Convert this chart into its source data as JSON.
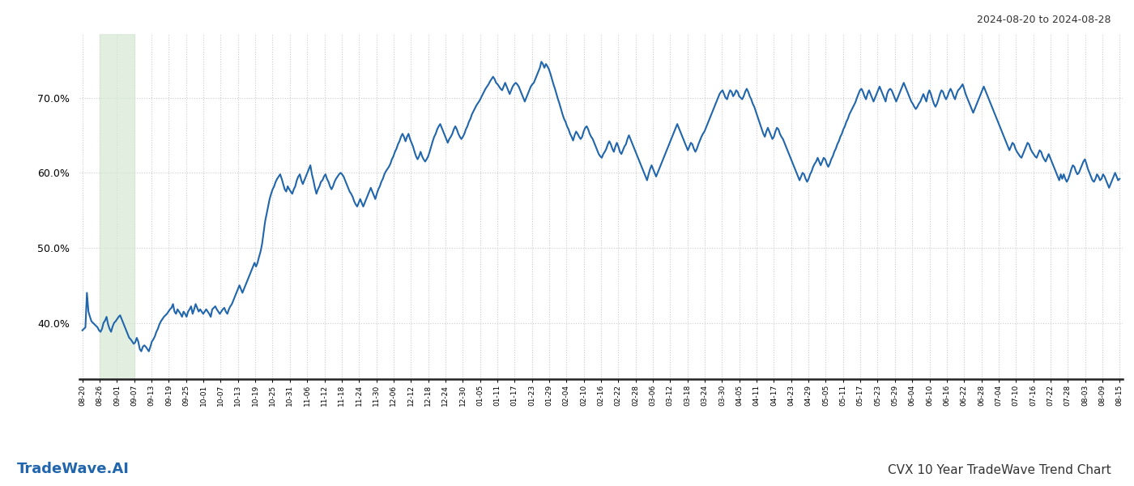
{
  "title_top_right": "2024-08-20 to 2024-08-28",
  "title_bottom_right": "CVX 10 Year TradeWave Trend Chart",
  "title_bottom_left": "TradeWave.AI",
  "line_color": "#2166ac",
  "line_width": 1.5,
  "shaded_region_color": "#d5e8d4",
  "shaded_region_alpha": 0.7,
  "background_color": "#ffffff",
  "grid_color": "#cccccc",
  "y_ticks": [
    0.4,
    0.5,
    0.6,
    0.7
  ],
  "ylim": [
    0.325,
    0.785
  ],
  "x_tick_labels": [
    "08-20",
    "08-26",
    "09-01",
    "09-07",
    "09-13",
    "09-19",
    "09-25",
    "10-01",
    "10-07",
    "10-13",
    "10-19",
    "10-25",
    "10-31",
    "11-06",
    "11-12",
    "11-18",
    "11-24",
    "11-30",
    "12-06",
    "12-12",
    "12-18",
    "12-24",
    "12-30",
    "01-05",
    "01-11",
    "01-17",
    "01-23",
    "01-29",
    "02-04",
    "02-10",
    "02-16",
    "02-22",
    "02-28",
    "03-06",
    "03-12",
    "03-18",
    "03-24",
    "03-30",
    "04-05",
    "04-11",
    "04-17",
    "04-23",
    "04-29",
    "05-05",
    "05-11",
    "05-17",
    "05-23",
    "05-29",
    "06-04",
    "06-10",
    "06-16",
    "06-22",
    "06-28",
    "07-04",
    "07-10",
    "07-16",
    "07-22",
    "07-28",
    "08-03",
    "08-09",
    "08-15"
  ],
  "shaded_x_start_label": "08-26",
  "shaded_x_end_label": "09-07",
  "values": [
    0.39,
    0.392,
    0.394,
    0.44,
    0.415,
    0.408,
    0.402,
    0.4,
    0.398,
    0.396,
    0.394,
    0.39,
    0.388,
    0.392,
    0.4,
    0.403,
    0.408,
    0.398,
    0.392,
    0.388,
    0.395,
    0.4,
    0.402,
    0.405,
    0.408,
    0.41,
    0.405,
    0.4,
    0.395,
    0.39,
    0.385,
    0.38,
    0.378,
    0.375,
    0.372,
    0.374,
    0.38,
    0.375,
    0.365,
    0.362,
    0.368,
    0.37,
    0.368,
    0.365,
    0.362,
    0.368,
    0.375,
    0.378,
    0.382,
    0.388,
    0.392,
    0.398,
    0.402,
    0.405,
    0.408,
    0.41,
    0.412,
    0.415,
    0.418,
    0.42,
    0.425,
    0.415,
    0.412,
    0.418,
    0.415,
    0.412,
    0.408,
    0.415,
    0.412,
    0.408,
    0.415,
    0.418,
    0.422,
    0.412,
    0.418,
    0.425,
    0.42,
    0.415,
    0.418,
    0.415,
    0.412,
    0.415,
    0.418,
    0.415,
    0.412,
    0.408,
    0.418,
    0.42,
    0.422,
    0.418,
    0.415,
    0.412,
    0.415,
    0.418,
    0.42,
    0.415,
    0.412,
    0.418,
    0.422,
    0.425,
    0.43,
    0.435,
    0.44,
    0.445,
    0.45,
    0.445,
    0.44,
    0.445,
    0.45,
    0.455,
    0.46,
    0.465,
    0.47,
    0.475,
    0.48,
    0.475,
    0.48,
    0.488,
    0.495,
    0.505,
    0.52,
    0.535,
    0.545,
    0.555,
    0.565,
    0.572,
    0.578,
    0.582,
    0.588,
    0.592,
    0.595,
    0.598,
    0.592,
    0.585,
    0.578,
    0.575,
    0.582,
    0.578,
    0.575,
    0.572,
    0.578,
    0.582,
    0.59,
    0.595,
    0.598,
    0.59,
    0.585,
    0.59,
    0.595,
    0.6,
    0.605,
    0.61,
    0.598,
    0.59,
    0.58,
    0.572,
    0.578,
    0.582,
    0.588,
    0.59,
    0.595,
    0.598,
    0.592,
    0.588,
    0.582,
    0.578,
    0.582,
    0.588,
    0.592,
    0.595,
    0.598,
    0.6,
    0.598,
    0.595,
    0.59,
    0.585,
    0.58,
    0.575,
    0.572,
    0.568,
    0.562,
    0.558,
    0.555,
    0.56,
    0.565,
    0.56,
    0.555,
    0.56,
    0.565,
    0.57,
    0.575,
    0.58,
    0.575,
    0.57,
    0.565,
    0.572,
    0.578,
    0.582,
    0.588,
    0.592,
    0.598,
    0.602,
    0.605,
    0.608,
    0.612,
    0.618,
    0.622,
    0.628,
    0.632,
    0.638,
    0.642,
    0.648,
    0.652,
    0.648,
    0.642,
    0.648,
    0.652,
    0.645,
    0.64,
    0.635,
    0.628,
    0.622,
    0.618,
    0.622,
    0.628,
    0.622,
    0.618,
    0.615,
    0.618,
    0.622,
    0.628,
    0.635,
    0.642,
    0.648,
    0.652,
    0.658,
    0.662,
    0.665,
    0.66,
    0.655,
    0.65,
    0.645,
    0.64,
    0.645,
    0.648,
    0.652,
    0.658,
    0.662,
    0.658,
    0.652,
    0.648,
    0.645,
    0.648,
    0.652,
    0.658,
    0.662,
    0.668,
    0.672,
    0.678,
    0.682,
    0.686,
    0.69,
    0.693,
    0.696,
    0.7,
    0.704,
    0.708,
    0.712,
    0.715,
    0.718,
    0.722,
    0.725,
    0.728,
    0.725,
    0.72,
    0.718,
    0.715,
    0.712,
    0.71,
    0.715,
    0.72,
    0.715,
    0.71,
    0.705,
    0.71,
    0.715,
    0.718,
    0.72,
    0.718,
    0.715,
    0.71,
    0.705,
    0.7,
    0.695,
    0.7,
    0.705,
    0.71,
    0.715,
    0.718,
    0.72,
    0.725,
    0.73,
    0.735,
    0.74,
    0.748,
    0.745,
    0.74,
    0.745,
    0.742,
    0.738,
    0.732,
    0.725,
    0.718,
    0.712,
    0.705,
    0.698,
    0.692,
    0.685,
    0.678,
    0.672,
    0.668,
    0.662,
    0.658,
    0.652,
    0.648,
    0.643,
    0.65,
    0.655,
    0.652,
    0.648,
    0.645,
    0.648,
    0.655,
    0.66,
    0.662,
    0.658,
    0.652,
    0.648,
    0.645,
    0.64,
    0.635,
    0.63,
    0.625,
    0.622,
    0.62,
    0.625,
    0.628,
    0.632,
    0.638,
    0.642,
    0.638,
    0.632,
    0.628,
    0.635,
    0.64,
    0.635,
    0.628,
    0.625,
    0.63,
    0.635,
    0.638,
    0.645,
    0.65,
    0.645,
    0.64,
    0.635,
    0.63,
    0.625,
    0.62,
    0.615,
    0.61,
    0.605,
    0.6,
    0.595,
    0.59,
    0.598,
    0.605,
    0.61,
    0.605,
    0.6,
    0.595,
    0.6,
    0.605,
    0.61,
    0.615,
    0.62,
    0.625,
    0.63,
    0.635,
    0.64,
    0.645,
    0.65,
    0.655,
    0.66,
    0.665,
    0.66,
    0.655,
    0.65,
    0.645,
    0.64,
    0.635,
    0.63,
    0.635,
    0.64,
    0.638,
    0.632,
    0.628,
    0.632,
    0.638,
    0.643,
    0.648,
    0.652,
    0.655,
    0.66,
    0.665,
    0.67,
    0.675,
    0.68,
    0.685,
    0.69,
    0.695,
    0.7,
    0.705,
    0.708,
    0.71,
    0.705,
    0.7,
    0.698,
    0.705,
    0.71,
    0.708,
    0.702,
    0.705,
    0.71,
    0.708,
    0.702,
    0.7,
    0.698,
    0.702,
    0.708,
    0.712,
    0.708,
    0.702,
    0.698,
    0.692,
    0.688,
    0.682,
    0.676,
    0.67,
    0.664,
    0.658,
    0.652,
    0.648,
    0.655,
    0.66,
    0.655,
    0.65,
    0.645,
    0.648,
    0.655,
    0.66,
    0.658,
    0.652,
    0.648,
    0.645,
    0.64,
    0.635,
    0.63,
    0.625,
    0.62,
    0.615,
    0.61,
    0.605,
    0.6,
    0.595,
    0.59,
    0.595,
    0.6,
    0.598,
    0.592,
    0.588,
    0.592,
    0.598,
    0.602,
    0.608,
    0.612,
    0.615,
    0.62,
    0.615,
    0.61,
    0.615,
    0.62,
    0.618,
    0.612,
    0.608,
    0.612,
    0.618,
    0.622,
    0.628,
    0.632,
    0.638,
    0.642,
    0.648,
    0.652,
    0.658,
    0.662,
    0.668,
    0.672,
    0.678,
    0.682,
    0.686,
    0.69,
    0.694,
    0.7,
    0.705,
    0.71,
    0.712,
    0.708,
    0.702,
    0.698,
    0.705,
    0.71,
    0.705,
    0.7,
    0.695,
    0.7,
    0.705,
    0.71,
    0.715,
    0.71,
    0.705,
    0.7,
    0.695,
    0.705,
    0.71,
    0.712,
    0.71,
    0.705,
    0.7,
    0.695,
    0.7,
    0.705,
    0.71,
    0.715,
    0.72,
    0.715,
    0.71,
    0.705,
    0.7,
    0.695,
    0.692,
    0.688,
    0.685,
    0.688,
    0.692,
    0.695,
    0.7,
    0.705,
    0.7,
    0.695,
    0.705,
    0.71,
    0.705,
    0.698,
    0.692,
    0.688,
    0.692,
    0.698,
    0.705,
    0.71,
    0.708,
    0.702,
    0.698,
    0.702,
    0.708,
    0.712,
    0.708,
    0.702,
    0.698,
    0.705,
    0.71,
    0.712,
    0.715,
    0.718,
    0.712,
    0.705,
    0.7,
    0.695,
    0.69,
    0.685,
    0.68,
    0.685,
    0.69,
    0.695,
    0.7,
    0.705,
    0.71,
    0.715,
    0.71,
    0.705,
    0.7,
    0.695,
    0.69,
    0.685,
    0.68,
    0.675,
    0.67,
    0.665,
    0.66,
    0.655,
    0.65,
    0.645,
    0.64,
    0.635,
    0.63,
    0.635,
    0.64,
    0.638,
    0.632,
    0.628,
    0.625,
    0.622,
    0.62,
    0.625,
    0.63,
    0.635,
    0.64,
    0.638,
    0.632,
    0.628,
    0.625,
    0.622,
    0.62,
    0.625,
    0.63,
    0.628,
    0.622,
    0.618,
    0.615,
    0.62,
    0.625,
    0.62,
    0.615,
    0.61,
    0.605,
    0.6,
    0.595,
    0.59,
    0.598,
    0.592,
    0.598,
    0.592,
    0.588,
    0.592,
    0.598,
    0.605,
    0.61,
    0.608,
    0.602,
    0.598,
    0.6,
    0.605,
    0.61,
    0.615,
    0.618,
    0.612,
    0.605,
    0.6,
    0.595,
    0.59,
    0.588,
    0.592,
    0.598,
    0.595,
    0.59,
    0.592,
    0.598,
    0.595,
    0.59,
    0.585,
    0.58,
    0.585,
    0.59,
    0.595,
    0.6,
    0.595,
    0.59,
    0.592
  ]
}
